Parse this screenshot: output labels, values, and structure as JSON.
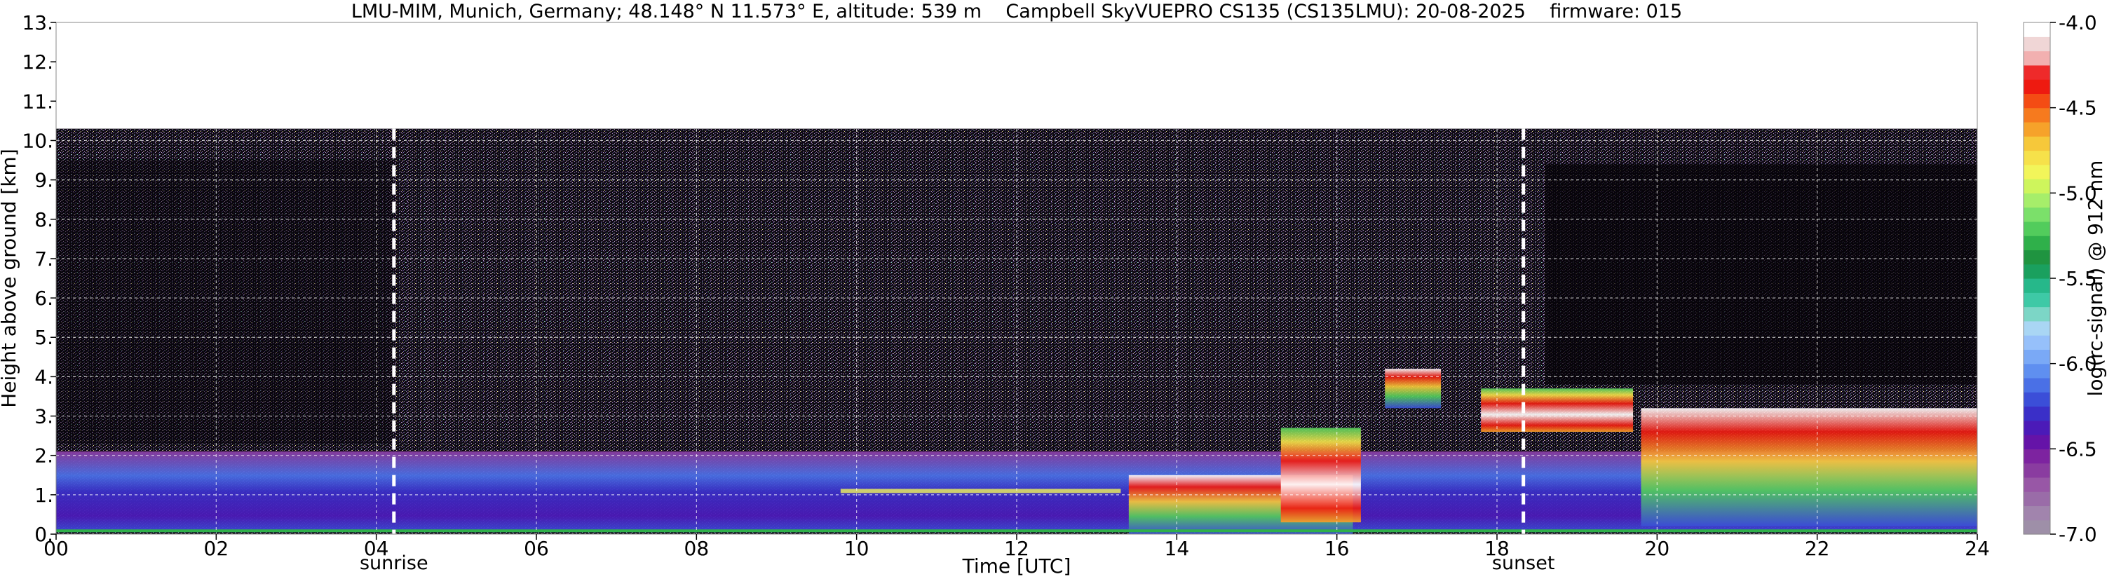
{
  "chart_data": {
    "type": "heatmap",
    "title": "LMU-MIM, Munich, Germany; 48.148° N 11.573° E, altitude: 539 m    Campbell SkyVUEPRO CS135 (CS135LMU): 20-08-2025    firmware: 015",
    "xlabel": "Time [UTC]",
    "ylabel": "Height above ground [km]",
    "xlim": [
      0,
      24
    ],
    "ylim": [
      0,
      13
    ],
    "x_ticks": [
      0,
      2,
      4,
      6,
      8,
      10,
      12,
      14,
      16,
      18,
      20,
      22,
      24
    ],
    "x_tick_labels": [
      "00",
      "02",
      "04",
      "06",
      "08",
      "10",
      "12",
      "14",
      "16",
      "18",
      "20",
      "22",
      "24"
    ],
    "y_ticks": [
      0,
      1,
      2,
      3,
      4,
      5,
      6,
      7,
      8,
      9,
      10,
      11,
      12,
      13
    ],
    "y_tick_labels": [
      "0.",
      "1.",
      "2.",
      "3.",
      "4.",
      "5.",
      "6.",
      "7.",
      "8.",
      "9.",
      "10.",
      "11.",
      "12.",
      "13."
    ],
    "grid": true,
    "data_top_km": 10.3,
    "events": [
      {
        "label": "sunrise",
        "time": 4.22
      },
      {
        "label": "sunset",
        "time": 18.33
      }
    ],
    "colorbar": {
      "label": "log(rc-signal) @ 912 nm",
      "min": -7.0,
      "max": -4.0,
      "ticks": [
        -4.0,
        -4.5,
        -5.0,
        -5.5,
        -6.0,
        -6.5,
        -7.0
      ],
      "tick_labels": [
        "-4.0",
        "-4.5",
        "-5.0",
        "-5.5",
        "-6.0",
        "-6.5",
        "-7.0"
      ],
      "colors": [
        "#9e8fa8",
        "#a184ad",
        "#9a6ca8",
        "#9857a6",
        "#8a3ca0",
        "#7d23a0",
        "#6513a8",
        "#4b1ab8",
        "#3a2fc8",
        "#3b4ed8",
        "#4a70e6",
        "#5f8ff0",
        "#7aa9f6",
        "#96c0fa",
        "#a9d6f4",
        "#7cd6c6",
        "#3ec9a6",
        "#26b88a",
        "#1aa05e",
        "#1f9440",
        "#2fb04a",
        "#52cc5c",
        "#7be06a",
        "#a6ee6a",
        "#cef55c",
        "#f2f55a",
        "#f6e14a",
        "#f6c83a",
        "#f6a22a",
        "#f67a1e",
        "#f44c14",
        "#ee1a10",
        "#ee2a2a",
        "#f2b0b0",
        "#f0d6d6",
        "#ffffff"
      ]
    },
    "features": [
      {
        "name": "boundary layer",
        "t_start": 0,
        "t_end": 24,
        "base_km": 0.05,
        "top_km": 2.1
      },
      {
        "name": "cloud layer",
        "t_start": 13.4,
        "t_end": 16.2,
        "base_km": 0.0,
        "top_km": 1.5
      },
      {
        "name": "cloud layer",
        "t_start": 15.3,
        "t_end": 16.3,
        "base_km": 0.3,
        "top_km": 2.7
      },
      {
        "name": "cloud layer",
        "t_start": 16.6,
        "t_end": 17.3,
        "base_km": 3.2,
        "top_km": 4.2
      },
      {
        "name": "cloud layer",
        "t_start": 17.8,
        "t_end": 19.7,
        "base_km": 2.6,
        "top_km": 3.7
      },
      {
        "name": "cloud layer",
        "t_start": 19.8,
        "t_end": 24,
        "base_km": 0.2,
        "top_km": 3.2
      }
    ]
  }
}
